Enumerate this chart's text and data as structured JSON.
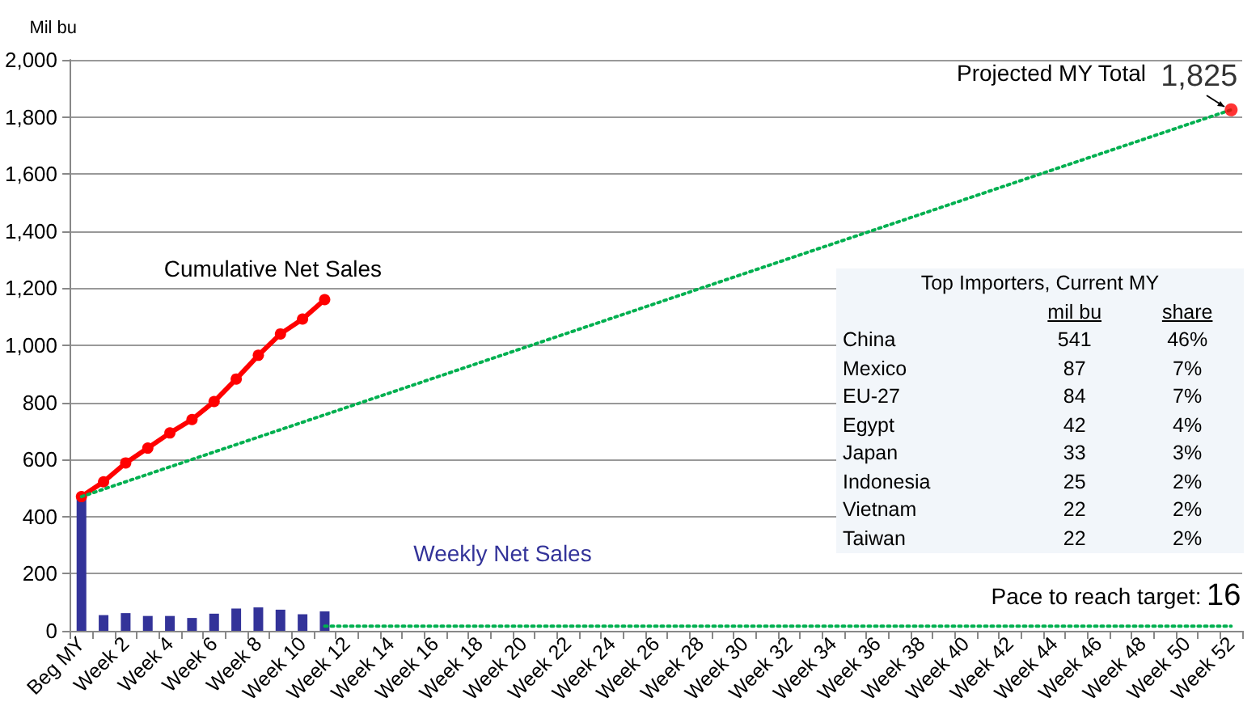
{
  "chart_data": {
    "type": "bar",
    "ylabel": "Mil bu",
    "categories": [
      "Beg MY",
      null,
      "Week 2",
      null,
      "Week 4",
      null,
      "Week 6",
      null,
      "Week 8",
      null,
      "Week 10",
      null,
      "Week 12",
      null,
      "Week 14",
      null,
      "Week 16",
      null,
      "Week 18",
      null,
      "Week 20",
      null,
      "Week 22",
      null,
      "Week 24",
      null,
      "Week 26",
      null,
      "Week 28",
      null,
      "Week 30",
      null,
      "Week 32",
      null,
      "Week 34",
      null,
      "Week 36",
      null,
      "Week 38",
      null,
      "Week 40",
      null,
      "Week 42",
      null,
      "Week 44",
      null,
      "Week 46",
      null,
      "Week 48",
      null,
      "Week 50",
      null,
      "Week 52"
    ],
    "series": [
      {
        "name": "Weekly Net Sales",
        "color": "#333399",
        "values": [
          470,
          55,
          62,
          52,
          52,
          45,
          60,
          78,
          82,
          74,
          58,
          68,
          null,
          null,
          null,
          null,
          null,
          null,
          null,
          null,
          null,
          null,
          null,
          null,
          null,
          null,
          null,
          null,
          null,
          null,
          null,
          null,
          null,
          null,
          null,
          null,
          null,
          null,
          null,
          null,
          null,
          null,
          null,
          null,
          null,
          null,
          null,
          null,
          null,
          null,
          null,
          null,
          null
        ]
      },
      {
        "name": "Cumulative Net Sales",
        "type": "line",
        "color": "#ff0000",
        "marker": "circle",
        "line_style": "solid",
        "values": [
          470,
          522,
          588,
          640,
          693,
          740,
          803,
          882,
          965,
          1040,
          1092,
          1160,
          null,
          null,
          null,
          null,
          null,
          null,
          null,
          null,
          null,
          null,
          null,
          null,
          null,
          null,
          null,
          null,
          null,
          null,
          null,
          null,
          null,
          null,
          null,
          null,
          null,
          null,
          null,
          null,
          null,
          null,
          null,
          null,
          null,
          null,
          null,
          null,
          null,
          null,
          null,
          null,
          null
        ]
      },
      {
        "type": "line",
        "color": "#00b050",
        "marker": "none",
        "line_style": "dotted",
        "values": [
          470,
          null,
          null,
          null,
          null,
          null,
          null,
          null,
          null,
          null,
          null,
          null,
          null,
          null,
          null,
          null,
          null,
          null,
          null,
          null,
          null,
          null,
          null,
          null,
          null,
          null,
          null,
          null,
          null,
          null,
          null,
          null,
          null,
          null,
          null,
          null,
          null,
          null,
          null,
          null,
          null,
          null,
          null,
          null,
          null,
          null,
          null,
          null,
          null,
          null,
          null,
          null,
          1825
        ]
      },
      {
        "name": "Pace to reach target:",
        "type": "line",
        "color": "#00b050",
        "marker": "none",
        "line_style": "dotted",
        "values": [
          null,
          null,
          null,
          null,
          null,
          null,
          null,
          null,
          null,
          null,
          null,
          16,
          16,
          16,
          16,
          16,
          16,
          16,
          16,
          16,
          16,
          16,
          16,
          16,
          16,
          16,
          16,
          16,
          16,
          16,
          16,
          16,
          16,
          16,
          16,
          16,
          16,
          16,
          16,
          16,
          16,
          16,
          16,
          16,
          16,
          16,
          16,
          16,
          16,
          16,
          16,
          16,
          16
        ],
        "value_labels": [
          null,
          null,
          null,
          null,
          null,
          null,
          null,
          null,
          null,
          null,
          null,
          null,
          null,
          null,
          null,
          null,
          null,
          null,
          null,
          null,
          null,
          null,
          null,
          null,
          null,
          null,
          null,
          null,
          null,
          null,
          null,
          null,
          null,
          null,
          null,
          null,
          null,
          null,
          null,
          null,
          null,
          null,
          null,
          null,
          null,
          null,
          null,
          null,
          null,
          null,
          null,
          null,
          "16"
        ]
      },
      {
        "type": "scatter",
        "color": "#ff0000",
        "marker": "circle",
        "values": [
          null,
          null,
          null,
          null,
          null,
          null,
          null,
          null,
          null,
          null,
          null,
          null,
          null,
          null,
          null,
          null,
          null,
          null,
          null,
          null,
          null,
          null,
          null,
          null,
          null,
          null,
          null,
          null,
          null,
          null,
          null,
          null,
          null,
          null,
          null,
          null,
          null,
          null,
          null,
          null,
          null,
          null,
          null,
          null,
          null,
          null,
          null,
          null,
          null,
          null,
          null,
          null,
          1825
        ],
        "value_labels": [
          null,
          null,
          null,
          null,
          null,
          null,
          null,
          null,
          null,
          null,
          null,
          null,
          null,
          null,
          null,
          null,
          null,
          null,
          null,
          null,
          null,
          null,
          null,
          null,
          null,
          null,
          null,
          null,
          null,
          null,
          null,
          null,
          null,
          null,
          null,
          null,
          null,
          null,
          null,
          null,
          null,
          null,
          null,
          null,
          null,
          null,
          null,
          null,
          null,
          null,
          null,
          null,
          "1,825"
        ]
      }
    ],
    "ylim": [
      0,
      2000
    ],
    "yticks": [
      0,
      200,
      400,
      600,
      800,
      {
        "value": 1000,
        "label": "1,000"
      },
      {
        "value": 1200,
        "label": "1,200"
      },
      {
        "value": 1400,
        "label": "1,400"
      },
      {
        "value": 1600,
        "label": "1,600"
      },
      {
        "value": 1800,
        "label": "1,800"
      },
      {
        "value": 2000,
        "label": "2,000"
      }
    ],
    "grid": "y",
    "annotations": [
      "Projected MY Total",
      "Top Importers, Current MY",
      "mil bu",
      "share",
      "China",
      "541",
      "46%",
      "Mexico",
      "87",
      "7%",
      "EU-27",
      "84",
      "7%",
      "Egypt",
      "42",
      "4%",
      "Japan",
      "33",
      "3%",
      "Indonesia",
      "25",
      "2%",
      "Vietnam",
      "22",
      "2%",
      "Taiwan",
      "22",
      "2%"
    ]
  }
}
